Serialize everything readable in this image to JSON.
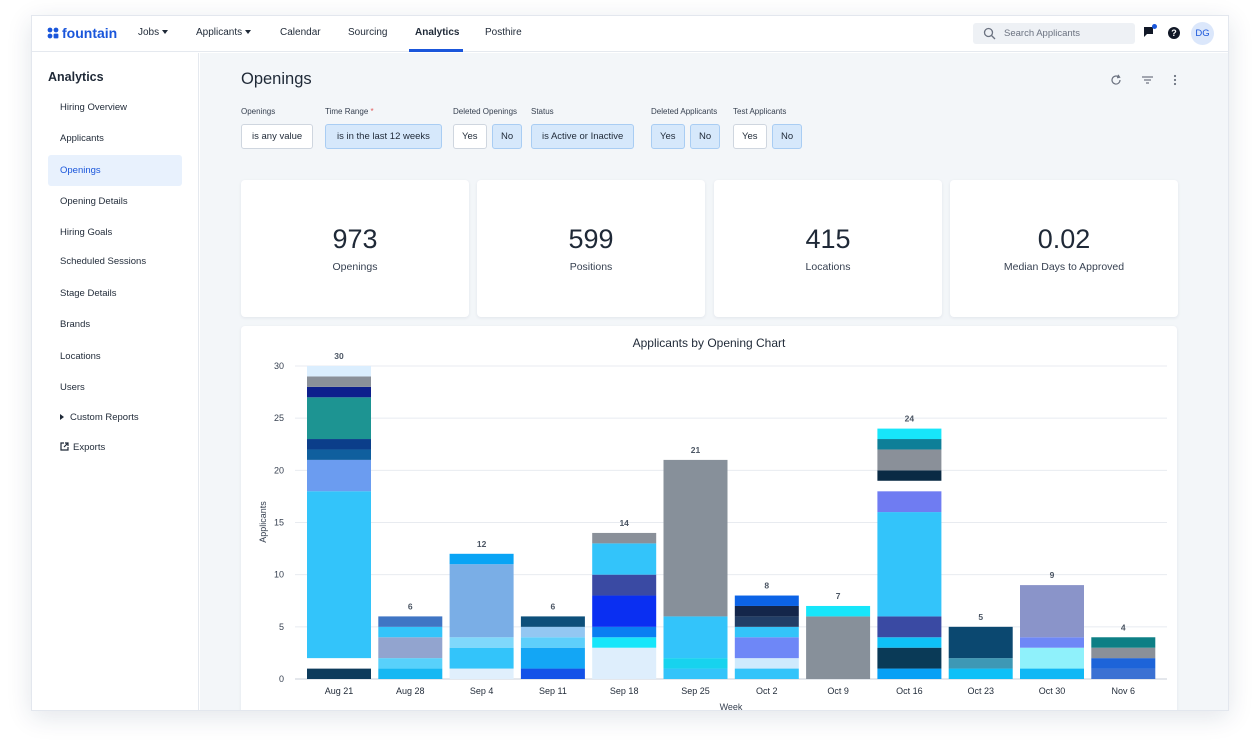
{
  "app": {
    "logo_text": "fountain"
  },
  "nav": {
    "items": [
      "Jobs",
      "Applicants",
      "Calendar",
      "Sourcing",
      "Analytics",
      "Posthire"
    ],
    "active": "Analytics",
    "search_placeholder": "Search Applicants",
    "help": "?",
    "avatar": "DG"
  },
  "sidebar": {
    "title": "Analytics",
    "items": [
      "Hiring Overview",
      "Applicants",
      "Openings",
      "Opening Details",
      "Hiring Goals",
      "Scheduled Sessions",
      "Stage Details",
      "Brands",
      "Locations",
      "Users",
      "Custom Reports",
      "Exports"
    ],
    "active": "Openings"
  },
  "page": {
    "title": "Openings"
  },
  "filters": {
    "openings": {
      "label": "Openings",
      "value": "is any value"
    },
    "time_range": {
      "label": "Time Range",
      "required_mark": "*",
      "value": "is in the last 12 weeks"
    },
    "deleted_openings": {
      "label": "Deleted Openings",
      "yes": "Yes",
      "no": "No",
      "selected": "No"
    },
    "status": {
      "label": "Status",
      "value": "is Active or Inactive"
    },
    "deleted_applicants": {
      "label": "Deleted Applicants",
      "yes": "Yes",
      "no": "No",
      "selected": "Both"
    },
    "test_applicants": {
      "label": "Test Applicants",
      "yes": "Yes",
      "no": "No",
      "selected": "No"
    }
  },
  "stats": [
    {
      "value": "973",
      "label": "Openings"
    },
    {
      "value": "599",
      "label": "Positions"
    },
    {
      "value": "415",
      "label": "Locations"
    },
    {
      "value": "0.02",
      "label": "Median Days to Approved"
    }
  ],
  "colors": {
    "accent": "#1a56db",
    "selected_pill": "#d6e8fb"
  },
  "chart_data": {
    "type": "bar",
    "stacked": true,
    "title": "Applicants by Opening Chart",
    "xlabel": "Week",
    "ylabel": "Applicants",
    "ylim": [
      0,
      30
    ],
    "yticks": [
      0,
      5,
      10,
      15,
      20,
      25,
      30
    ],
    "grid": true,
    "categories": [
      "Aug 21",
      "Aug 28",
      "Sep 4",
      "Sep 11",
      "Sep 18",
      "Sep 25",
      "Oct 2",
      "Oct 9",
      "Oct 16",
      "Oct 23",
      "Oct 30",
      "Nov 6"
    ],
    "totals": [
      30,
      6,
      12,
      6,
      14,
      21,
      8,
      7,
      24,
      5,
      9,
      4
    ],
    "segments": [
      [
        [
          1,
          "#0d3b5c"
        ],
        [
          1,
          "#ffffff"
        ],
        [
          16,
          "#33c4fa"
        ],
        [
          3,
          "#6b9cf0"
        ],
        [
          1,
          "#0f5f9e"
        ],
        [
          1,
          "#0b3e8a"
        ],
        [
          4,
          "#1d9492"
        ],
        [
          1,
          "#0d1f8c"
        ],
        [
          1,
          "#8a9099"
        ],
        [
          1,
          "#dbeefe"
        ]
      ],
      [
        [
          1,
          "#16b8f3"
        ],
        [
          1,
          "#58d1fb"
        ],
        [
          2,
          "#92a4cf"
        ],
        [
          1,
          "#33c4fa"
        ],
        [
          1,
          "#3f75c4"
        ]
      ],
      [
        [
          1,
          "#e0effc"
        ],
        [
          2,
          "#33c4fa"
        ],
        [
          1,
          "#7fd8fb"
        ],
        [
          7,
          "#7aaee6"
        ],
        [
          1,
          "#09a4f5"
        ]
      ],
      [
        [
          1,
          "#1452e8"
        ],
        [
          2,
          "#13a6f5"
        ],
        [
          1,
          "#5ecffb"
        ],
        [
          1,
          "#93c7f2"
        ],
        [
          1,
          "#0d4f7a"
        ]
      ],
      [
        [
          3,
          "#deeefc"
        ],
        [
          1,
          "#17e6fa"
        ],
        [
          1,
          "#0a7ff2"
        ],
        [
          3,
          "#0a2ff2"
        ],
        [
          2,
          "#3a4aa3"
        ],
        [
          3,
          "#33c4fa"
        ],
        [
          1,
          "#8a9099"
        ]
      ],
      [
        [
          1,
          "#33c4fa"
        ],
        [
          1,
          "#17d3ee"
        ],
        [
          4,
          "#33c4fa"
        ],
        [
          15,
          "#87909a"
        ]
      ],
      [
        [
          1,
          "#33c4fa"
        ],
        [
          1,
          "#cfeafd"
        ],
        [
          2,
          "#6e87f7"
        ],
        [
          1,
          "#33c4fa"
        ],
        [
          1,
          "#223e66"
        ],
        [
          1,
          "#14264a"
        ],
        [
          1,
          "#0c63e6"
        ]
      ],
      [
        [
          6,
          "#87909a"
        ],
        [
          1,
          "#17e6fa"
        ]
      ],
      [
        [
          1,
          "#08a0f5"
        ],
        [
          2,
          "#0a3a57"
        ],
        [
          1,
          "#0ec0f7"
        ],
        [
          2,
          "#3a4aa3"
        ],
        [
          10,
          "#33c4fa"
        ],
        [
          2,
          "#6f7cf2"
        ],
        [
          1,
          "#ffffff"
        ],
        [
          1,
          "#0a2a44"
        ],
        [
          2,
          "#8a9099"
        ],
        [
          1,
          "#0e7f98"
        ],
        [
          1,
          "#17e6fa"
        ]
      ],
      [
        [
          1,
          "#0ec0f7"
        ],
        [
          1,
          "#3e98b5"
        ],
        [
          3,
          "#0b4870"
        ]
      ],
      [
        [
          1,
          "#11b8f5"
        ],
        [
          2,
          "#8ff1fb"
        ],
        [
          1,
          "#6e87f7"
        ],
        [
          5,
          "#8a94c9"
        ]
      ],
      [
        [
          1,
          "#3b71d3"
        ],
        [
          1,
          "#1d64d9"
        ],
        [
          1,
          "#8a9099"
        ],
        [
          1,
          "#0d7f85"
        ]
      ]
    ]
  }
}
